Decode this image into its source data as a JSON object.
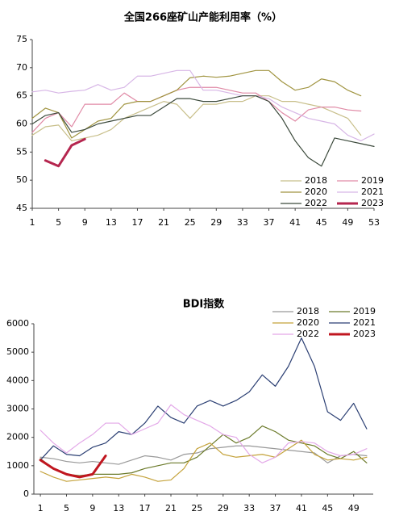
{
  "chart_data": [
    {
      "type": "line",
      "title": "全国266座矿山产能利用率（%）",
      "x": [
        1,
        3,
        5,
        7,
        9,
        11,
        13,
        15,
        17,
        19,
        21,
        23,
        25,
        27,
        29,
        31,
        33,
        35,
        37,
        39,
        41,
        43,
        45,
        47,
        49,
        51,
        53
      ],
      "xlim": [
        1,
        53
      ],
      "ylim": [
        45,
        75
      ],
      "xticks": [
        1,
        5,
        9,
        13,
        17,
        21,
        25,
        29,
        33,
        37,
        41,
        45,
        49,
        53
      ],
      "yticks": [
        45,
        50,
        55,
        60,
        65,
        70,
        75
      ],
      "legend": "lower right",
      "series": [
        {
          "name": "2018",
          "color": "#c8bf8a",
          "values": [
            58,
            59.5,
            59.8,
            57,
            57.5,
            58,
            59,
            61,
            62,
            63,
            64,
            63.5,
            61,
            63.5,
            63.5,
            64,
            64,
            65,
            65,
            64,
            64,
            63.5,
            63,
            62,
            61,
            58,
            null
          ]
        },
        {
          "name": "2019",
          "color": "#e08aa6",
          "values": [
            58.5,
            61,
            62,
            59.5,
            63.5,
            63.5,
            63.5,
            65.5,
            64,
            64,
            65,
            66,
            66.5,
            66.5,
            66.5,
            66,
            65.5,
            65.5,
            64,
            62,
            60.5,
            62.5,
            63,
            63,
            62.5,
            62.3,
            null
          ]
        },
        {
          "name": "2020",
          "color": "#a09440",
          "values": [
            61,
            62.8,
            62,
            57.5,
            59,
            60.5,
            61,
            63.5,
            64,
            64,
            65,
            66,
            68.2,
            68.5,
            68.3,
            68.5,
            69,
            69.5,
            69.5,
            67.5,
            66,
            66.5,
            68,
            67.5,
            66,
            65,
            null
          ]
        },
        {
          "name": "2021",
          "color": "#d7b6e6",
          "values": [
            65.7,
            66,
            65.5,
            65.8,
            66,
            67,
            66,
            66.5,
            68.5,
            68.5,
            69,
            69.5,
            69.5,
            66,
            66,
            65.5,
            65,
            65,
            64.5,
            63,
            62,
            61,
            60.5,
            60,
            58,
            57,
            58.2
          ]
        },
        {
          "name": "2022",
          "color": "#3c4a3c",
          "values": [
            60,
            61.5,
            62,
            58.5,
            59,
            60,
            60.5,
            61,
            61.5,
            61.5,
            63,
            64.5,
            64.5,
            64,
            64,
            64.5,
            65,
            65,
            64,
            61,
            57,
            54,
            52.5,
            57.5,
            57,
            56.5,
            56
          ]
        },
        {
          "name": "2023",
          "color": "#b5264f",
          "width": 3,
          "values": [
            null,
            53.5,
            52.5,
            56.2,
            57.3,
            null,
            null,
            null,
            null,
            null,
            null,
            null,
            null,
            null,
            null,
            null,
            null,
            null,
            null,
            null,
            null,
            null,
            null,
            null,
            null,
            null,
            null
          ]
        }
      ]
    },
    {
      "type": "line",
      "title": "BDI指数",
      "x": [
        1,
        3,
        5,
        7,
        9,
        11,
        13,
        15,
        17,
        19,
        21,
        23,
        25,
        27,
        29,
        31,
        33,
        35,
        37,
        39,
        41,
        43,
        45,
        47,
        49,
        51
      ],
      "xlim": [
        0,
        52
      ],
      "ylim": [
        0,
        6000
      ],
      "xticks": [
        1,
        5,
        9,
        13,
        17,
        21,
        25,
        29,
        33,
        37,
        41,
        45,
        49
      ],
      "yticks": [
        0,
        1000,
        2000,
        3000,
        4000,
        5000,
        6000
      ],
      "legend": "upper right",
      "series": [
        {
          "name": "2018",
          "color": "#999999",
          "values": [
            1300,
            1250,
            1150,
            1100,
            1150,
            1100,
            1050,
            1200,
            1350,
            1300,
            1200,
            1400,
            1450,
            1600,
            1650,
            1700,
            1700,
            1650,
            1600,
            1550,
            1500,
            1450,
            1100,
            1350,
            1400,
            1350
          ]
        },
        {
          "name": "2019",
          "color": "#6b7a2a",
          "values": [
            1250,
            900,
            700,
            650,
            700,
            700,
            700,
            750,
            900,
            1000,
            1100,
            1100,
            1300,
            1700,
            2100,
            1800,
            2000,
            2400,
            2200,
            1900,
            1800,
            1700,
            1400,
            1250,
            1500,
            1100
          ]
        },
        {
          "name": "2020",
          "color": "#c4a23a",
          "values": [
            800,
            600,
            450,
            500,
            550,
            600,
            550,
            700,
            600,
            450,
            500,
            900,
            1600,
            1800,
            1400,
            1300,
            1350,
            1400,
            1300,
            1600,
            1900,
            1400,
            1200,
            1250,
            1200,
            1300
          ]
        },
        {
          "name": "2021",
          "color": "#2b3f73",
          "values": [
            1200,
            1700,
            1400,
            1350,
            1650,
            1800,
            2200,
            2100,
            2500,
            3100,
            2700,
            2500,
            3100,
            3300,
            3100,
            3300,
            3600,
            4200,
            3800,
            4500,
            5500,
            4500,
            2900,
            2600,
            3200,
            2300
          ]
        },
        {
          "name": "2022",
          "color": "#e3a8e8",
          "values": [
            2250,
            1800,
            1450,
            1800,
            2100,
            2500,
            2500,
            2100,
            2300,
            2500,
            3150,
            2800,
            2600,
            2400,
            2100,
            2000,
            1400,
            1100,
            1300,
            1800,
            1850,
            1800,
            1500,
            1350,
            1400,
            1600
          ]
        },
        {
          "name": "2023",
          "color": "#c0161f",
          "width": 3,
          "values": [
            1200,
            900,
            700,
            600,
            700,
            1350,
            null,
            null,
            null,
            null,
            null,
            null,
            null,
            null,
            null,
            null,
            null,
            null,
            null,
            null,
            null,
            null,
            null,
            null,
            null,
            null
          ]
        }
      ]
    }
  ]
}
